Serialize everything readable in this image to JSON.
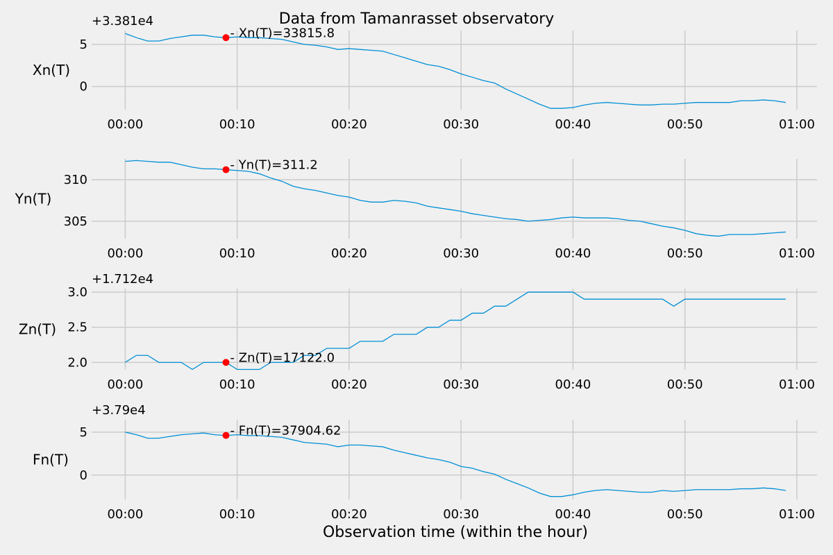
{
  "chart_data": {
    "type": "line",
    "title": "Data from  Tamanrasset observatory",
    "xlabel": "Observation time (within the hour)",
    "x_ticks": [
      "00:00",
      "00:10",
      "00:20",
      "00:30",
      "00:40",
      "00:50",
      "01:00"
    ],
    "x_minutes": [
      0,
      1,
      2,
      3,
      4,
      5,
      6,
      7,
      8,
      9,
      10,
      11,
      12,
      13,
      14,
      15,
      16,
      17,
      18,
      19,
      20,
      21,
      22,
      23,
      24,
      25,
      26,
      27,
      28,
      29,
      30,
      31,
      32,
      33,
      34,
      35,
      36,
      37,
      38,
      39,
      40,
      41,
      42,
      43,
      44,
      45,
      46,
      47,
      48,
      49,
      50,
      51,
      52,
      53,
      54,
      55,
      56,
      57,
      58,
      59
    ],
    "xlim": [
      -3.0,
      61.8
    ],
    "line_color": "#008fd5",
    "marker_color": "#ff0000",
    "marker_minute": 9,
    "panels": [
      {
        "ylabel": "Xn(T)",
        "offset_label": "+3.381e4",
        "offset": 33810,
        "ylim": [
          -2.75,
          6.65
        ],
        "yticks": [
          {
            "label": "0",
            "value": 0
          },
          {
            "label": "5",
            "value": 5
          }
        ],
        "annotation": "- Xn(T)=33815.8",
        "marker_value": 5.8,
        "values": [
          6.3,
          5.8,
          5.4,
          5.4,
          5.7,
          5.9,
          6.1,
          6.1,
          5.9,
          5.8,
          5.9,
          5.8,
          5.8,
          5.7,
          5.6,
          5.3,
          5.0,
          4.9,
          4.7,
          4.4,
          4.5,
          4.4,
          4.3,
          4.2,
          3.8,
          3.4,
          3.0,
          2.6,
          2.4,
          2.0,
          1.5,
          1.1,
          0.7,
          0.4,
          -0.3,
          -0.9,
          -1.5,
          -2.1,
          -2.6,
          -2.6,
          -2.5,
          -2.2,
          -2.0,
          -1.9,
          -2.0,
          -2.1,
          -2.2,
          -2.2,
          -2.1,
          -2.1,
          -2.0,
          -1.9,
          -1.9,
          -1.9,
          -1.9,
          -1.7,
          -1.7,
          -1.6,
          -1.7,
          -1.9
        ]
      },
      {
        "ylabel": "Yn(T)",
        "offset_label": "",
        "offset": 0,
        "ylim": [
          302.9,
          312.5
        ],
        "yticks": [
          {
            "label": "305",
            "value": 305
          },
          {
            "label": "310",
            "value": 310
          }
        ],
        "annotation": "- Yn(T)=311.2",
        "marker_value": 311.2,
        "values": [
          312.2,
          312.3,
          312.2,
          312.1,
          312.1,
          311.8,
          311.5,
          311.3,
          311.3,
          311.2,
          311.1,
          311.0,
          310.7,
          310.2,
          309.8,
          309.2,
          308.9,
          308.7,
          308.4,
          308.1,
          307.9,
          307.5,
          307.3,
          307.3,
          307.5,
          307.4,
          307.2,
          306.8,
          306.6,
          306.4,
          306.2,
          305.9,
          305.7,
          305.5,
          305.3,
          305.2,
          305.0,
          305.1,
          305.2,
          305.4,
          305.5,
          305.4,
          305.4,
          305.4,
          305.3,
          305.1,
          305.0,
          304.7,
          304.4,
          304.2,
          303.9,
          303.5,
          303.3,
          303.2,
          303.4,
          303.4,
          303.4,
          303.5,
          303.6,
          303.7
        ]
      },
      {
        "ylabel": "Zn(T)",
        "offset_label": "+1.712e4",
        "offset": 17120,
        "ylim": [
          1.895,
          3.05
        ],
        "yticks": [
          {
            "label": "2.0",
            "value": 2.0
          },
          {
            "label": "2.5",
            "value": 2.5
          },
          {
            "label": "3.0",
            "value": 3.0
          }
        ],
        "annotation": "- Zn(T)=17122.0",
        "marker_value": 2.0,
        "values": [
          2.0,
          2.1,
          2.1,
          2.0,
          2.0,
          2.0,
          1.9,
          2.0,
          2.0,
          2.0,
          1.9,
          1.9,
          1.9,
          2.0,
          2.0,
          2.0,
          2.1,
          2.1,
          2.2,
          2.2,
          2.2,
          2.3,
          2.3,
          2.3,
          2.4,
          2.4,
          2.4,
          2.5,
          2.5,
          2.6,
          2.6,
          2.7,
          2.7,
          2.8,
          2.8,
          2.9,
          3.0,
          3.0,
          3.0,
          3.0,
          3.0,
          2.9,
          2.9,
          2.9,
          2.9,
          2.9,
          2.9,
          2.9,
          2.9,
          2.8,
          2.9,
          2.9,
          2.9,
          2.9,
          2.9,
          2.9,
          2.9,
          2.9,
          2.9,
          2.9
        ]
      },
      {
        "ylabel": "Fn(T)",
        "offset_label": "+3.79e4",
        "offset": 37900,
        "ylim": [
          -2.85,
          6.45
        ],
        "yticks": [
          {
            "label": "0",
            "value": 0
          },
          {
            "label": "5",
            "value": 5
          }
        ],
        "annotation": "- Fn(T)=37904.62",
        "marker_value": 4.62,
        "values": [
          5.0,
          4.7,
          4.3,
          4.3,
          4.5,
          4.7,
          4.8,
          4.9,
          4.7,
          4.6,
          4.7,
          4.6,
          4.6,
          4.5,
          4.4,
          4.1,
          3.8,
          3.7,
          3.6,
          3.3,
          3.5,
          3.5,
          3.4,
          3.3,
          2.9,
          2.6,
          2.3,
          2.0,
          1.8,
          1.5,
          1.0,
          0.8,
          0.4,
          0.1,
          -0.5,
          -1.0,
          -1.5,
          -2.1,
          -2.5,
          -2.5,
          -2.3,
          -2.0,
          -1.8,
          -1.7,
          -1.8,
          -1.9,
          -2.0,
          -2.0,
          -1.8,
          -1.9,
          -1.8,
          -1.7,
          -1.7,
          -1.7,
          -1.7,
          -1.6,
          -1.6,
          -1.5,
          -1.6,
          -1.8
        ]
      }
    ]
  }
}
